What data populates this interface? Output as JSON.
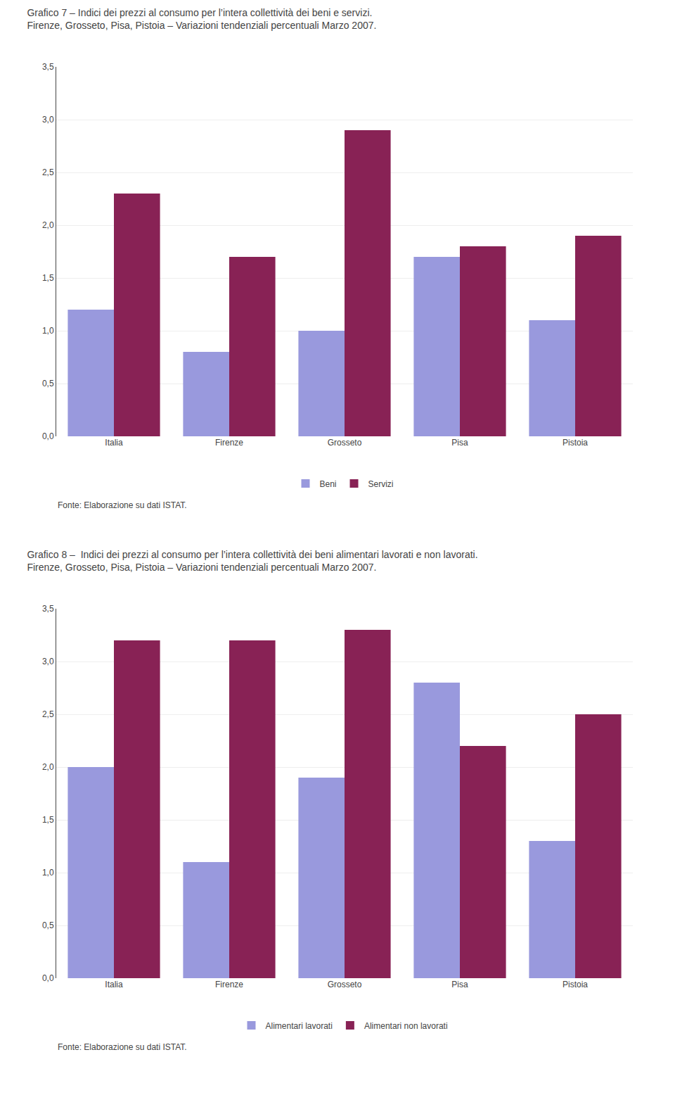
{
  "chart_data": [
    {
      "type": "bar",
      "title": "Grafico 7 – Indici dei prezzi al consumo per l’intera collettività dei beni e servizi.",
      "subtitle": "Firenze, Grosseto, Pisa, Pistoia – Variazioni tendenziali percentuali Marzo 2007.",
      "categories": [
        "Italia",
        "Firenze",
        "Grosseto",
        "Pisa",
        "Pistoia"
      ],
      "series": [
        {
          "name": "Beni",
          "color": "#9999dd",
          "values": [
            1.2,
            0.8,
            1.0,
            1.7,
            1.1
          ]
        },
        {
          "name": "Servizi",
          "color": "#882255",
          "values": [
            2.3,
            1.7,
            2.9,
            1.8,
            1.9
          ]
        }
      ],
      "ylim": [
        0,
        3.5
      ],
      "yticks": [
        {
          "value": 0.0,
          "label": "0,0"
        },
        {
          "value": 0.5,
          "label": "0,5"
        },
        {
          "value": 1.0,
          "label": "1,0"
        },
        {
          "value": 1.5,
          "label": "1,5"
        },
        {
          "value": 2.0,
          "label": "2,0"
        },
        {
          "value": 2.5,
          "label": "2,5"
        },
        {
          "value": 3.0,
          "label": "3,0"
        },
        {
          "value": 3.5,
          "label": "3,5"
        }
      ],
      "grid": true,
      "legend": "bottom",
      "annotations": [
        "Fonte: Elaborazione su dati ISTAT."
      ]
    },
    {
      "type": "bar",
      "title": "Grafico 8 –  Indici dei prezzi al consumo per l’intera collettività dei beni alimentari lavorati e non lavorati.",
      "subtitle": "Firenze, Grosseto, Pisa, Pistoia – Variazioni tendenziali percentuali Marzo 2007.",
      "categories": [
        "Italia",
        "Firenze",
        "Grosseto",
        "Pisa",
        "Pistoia"
      ],
      "series": [
        {
          "name": "Alimentari lavorati",
          "color": "#9999dd",
          "values": [
            2.0,
            1.1,
            1.9,
            2.8,
            1.3
          ]
        },
        {
          "name": "Alimentari non lavorati",
          "color": "#882255",
          "values": [
            3.2,
            3.2,
            3.3,
            2.2,
            2.5
          ]
        }
      ],
      "ylim": [
        0,
        3.5
      ],
      "yticks": [
        {
          "value": 0.0,
          "label": "0,0"
        },
        {
          "value": 0.5,
          "label": "0,5"
        },
        {
          "value": 1.0,
          "label": "1,0"
        },
        {
          "value": 1.5,
          "label": "1,5"
        },
        {
          "value": 2.0,
          "label": "2,0"
        },
        {
          "value": 2.5,
          "label": "2,5"
        },
        {
          "value": 3.0,
          "label": "3,0"
        },
        {
          "value": 3.5,
          "label": "3,5"
        }
      ],
      "grid": true,
      "legend": "bottom",
      "annotations": [
        "Fonte: Elaborazione su dati ISTAT."
      ]
    }
  ]
}
